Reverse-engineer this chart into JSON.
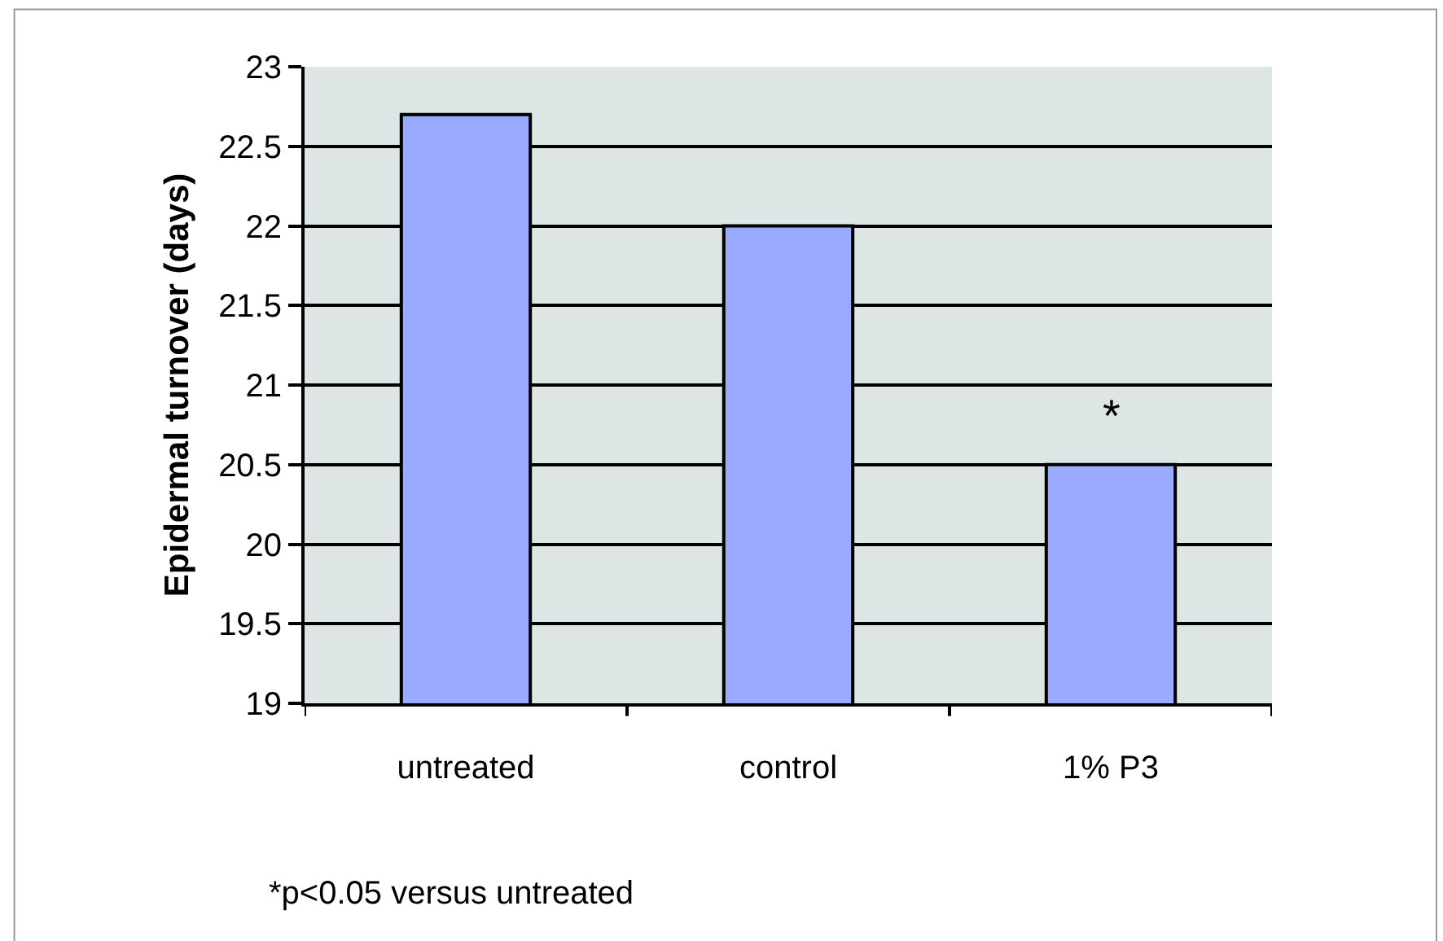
{
  "chart_data": {
    "type": "bar",
    "ylabel": "Epidermal turnover (days)",
    "categories": [
      "untreated",
      "control",
      "1% P3"
    ],
    "values": [
      22.7,
      22.0,
      20.5
    ],
    "color": "#99aaff",
    "ylim": [
      19,
      23
    ],
    "yticks": [
      19,
      19.5,
      20,
      20.5,
      21,
      21.5,
      22,
      22.5,
      23
    ],
    "grid": "y",
    "annotations": [
      "*",
      "*p<0.05 versus untreated"
    ]
  }
}
